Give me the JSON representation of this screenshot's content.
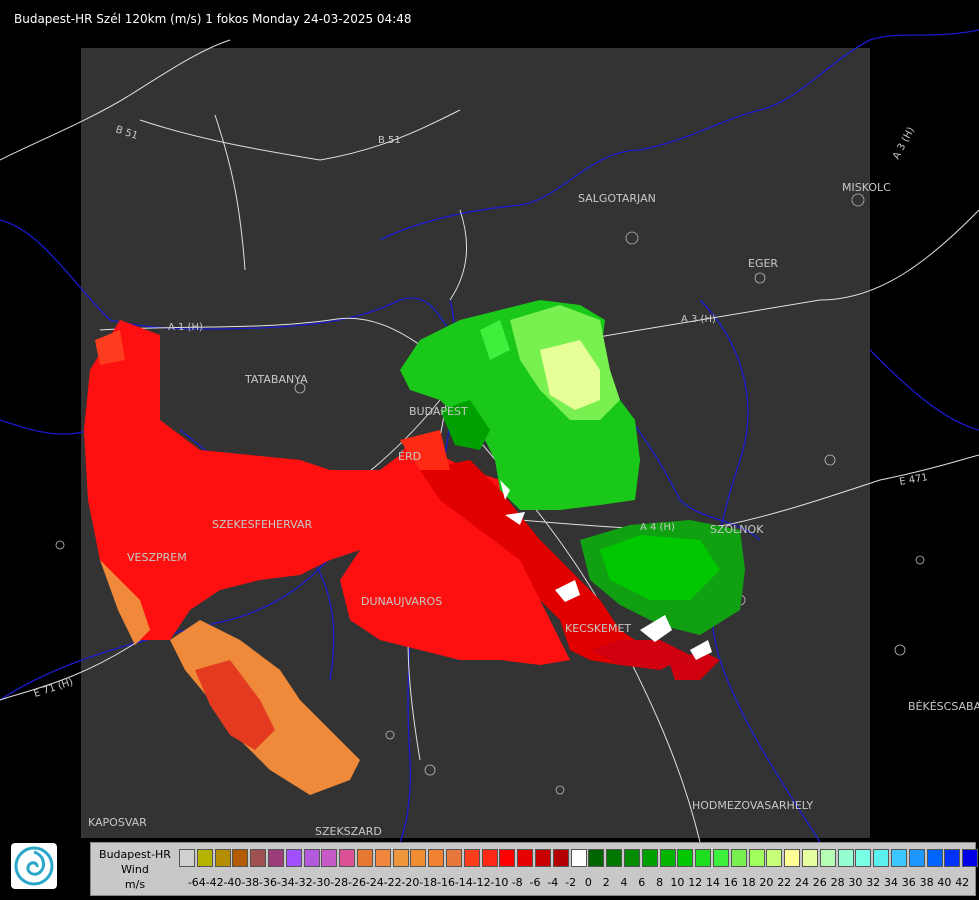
{
  "title": "Budapest-HR Szél 120km (m/s) 1 fokos Monday 24-03-2025 04:48",
  "cities": [
    "SALGOTARJAN",
    "EGER",
    "MISKOLC",
    "TATABANYA",
    "BUDAPEST",
    "ÉRD",
    "SZEKESFEHERVAR",
    "VESZPREM",
    "DUNAUJVAROS",
    "KECSKEMET",
    "SZOLNOK",
    "BÉKÉSCSABA",
    "HODMEZOVASARHELY",
    "KAPOSVAR",
    "SZEKSZARD"
  ],
  "roads": [
    "B 51",
    "B 51",
    "A 3 (H)",
    "A 3 (H)",
    "A 1 (H)",
    "A 4 (H)",
    "E 471",
    "E 71 (H)"
  ],
  "legend": {
    "station": "Budapest-HR",
    "quantity": "Wind",
    "unit": "m/s",
    "ticks": [
      "-64",
      "-42",
      "-40",
      "-38",
      "-36",
      "-34",
      "-32",
      "-30",
      "-28",
      "-26",
      "-24",
      "-22",
      "-20",
      "-18",
      "-16",
      "-14",
      "-12",
      "-10",
      "-8",
      "-6",
      "-4",
      "-2",
      "0",
      "2",
      "4",
      "6",
      "8",
      "10",
      "12",
      "14",
      "16",
      "18",
      "20",
      "22",
      "24",
      "26",
      "28",
      "30",
      "32",
      "34",
      "36",
      "38",
      "40",
      "42"
    ],
    "colors": [
      "#d0d0d0",
      "#b4b400",
      "#b48c00",
      "#b45a00",
      "#a05050",
      "#9c3c78",
      "#a050ff",
      "#b45adc",
      "#c85ac8",
      "#dc5096",
      "#e67832",
      "#f0873c",
      "#f0963c",
      "#f08c32",
      "#f08232",
      "#e6783c",
      "#ff3c1e",
      "#ff2814",
      "#ff0000",
      "#e60000",
      "#c80000",
      "#b40000",
      "#ffffff",
      "#006400",
      "#007800",
      "#008c00",
      "#00a000",
      "#00b400",
      "#00c800",
      "#1edc1e",
      "#3cf03c",
      "#78f050",
      "#a0ff5a",
      "#c8ff78",
      "#ffff96",
      "#e6ffa0",
      "#b4ffb4",
      "#96ffd2",
      "#78ffe6",
      "#5af0f0",
      "#3cc8ff",
      "#1e96ff",
      "#0064ff",
      "#0032ff",
      "#0000e6"
    ]
  }
}
